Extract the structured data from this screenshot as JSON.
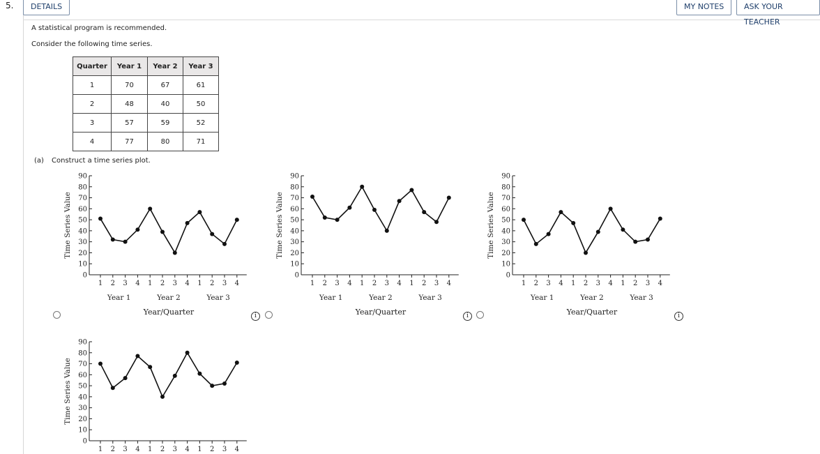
{
  "question": {
    "number": "5.",
    "details_label": "DETAILS",
    "my_notes_label": "MY NOTES",
    "ask_teacher_label": "ASK YOUR TEACHER",
    "note": "A statistical program is recommended.",
    "prompt": "Consider the following time series."
  },
  "table": {
    "headers": [
      "Quarter",
      "Year 1",
      "Year 2",
      "Year 3"
    ],
    "rows": [
      [
        "1",
        "70",
        "67",
        "61"
      ],
      [
        "2",
        "48",
        "40",
        "50"
      ],
      [
        "3",
        "57",
        "59",
        "52"
      ],
      [
        "4",
        "77",
        "80",
        "71"
      ]
    ]
  },
  "part_a": {
    "label": "(a)",
    "text": "Construct a time series plot."
  },
  "options": [
    {
      "info_icon": "i"
    },
    {
      "info_icon": "i"
    },
    {
      "info_icon": "i"
    },
    {
      "info_icon": ""
    }
  ],
  "chart_data": [
    {
      "type": "line",
      "ylabel": "Time Series Value",
      "xlabel": "Year/Quarter",
      "ylim": [
        0,
        90
      ],
      "yticks": [
        0,
        10,
        20,
        30,
        40,
        50,
        60,
        70,
        80,
        90
      ],
      "quarter_labels": [
        "1",
        "2",
        "3",
        "4",
        "1",
        "2",
        "3",
        "4",
        "1",
        "2",
        "3",
        "4"
      ],
      "year_labels": [
        "Year 1",
        "Year 2",
        "Year 3"
      ],
      "values": [
        51,
        32,
        30,
        41,
        60,
        39,
        20,
        47,
        57,
        37,
        28,
        50
      ]
    },
    {
      "type": "line",
      "ylabel": "Time Series Value",
      "xlabel": "Year/Quarter",
      "ylim": [
        0,
        90
      ],
      "yticks": [
        0,
        10,
        20,
        30,
        40,
        50,
        60,
        70,
        80,
        90
      ],
      "quarter_labels": [
        "1",
        "2",
        "3",
        "4",
        "1",
        "2",
        "3",
        "4",
        "1",
        "2",
        "3",
        "4"
      ],
      "year_labels": [
        "Year 1",
        "Year 2",
        "Year 3"
      ],
      "values": [
        71,
        52,
        50,
        61,
        80,
        59,
        40,
        67,
        77,
        57,
        48,
        70
      ]
    },
    {
      "type": "line",
      "ylabel": "Time Series Value",
      "xlabel": "Year/Quarter",
      "ylim": [
        0,
        90
      ],
      "yticks": [
        0,
        10,
        20,
        30,
        40,
        50,
        60,
        70,
        80,
        90
      ],
      "quarter_labels": [
        "1",
        "2",
        "3",
        "4",
        "1",
        "2",
        "3",
        "4",
        "1",
        "2",
        "3",
        "4"
      ],
      "year_labels": [
        "Year 1",
        "Year 2",
        "Year 3"
      ],
      "values": [
        50,
        28,
        37,
        57,
        47,
        20,
        39,
        60,
        41,
        30,
        32,
        51
      ]
    },
    {
      "type": "line",
      "ylabel": "Time Series Value",
      "xlabel": "",
      "ylim": [
        0,
        90
      ],
      "yticks": [
        0,
        10,
        20,
        30,
        40,
        50,
        60,
        70,
        80,
        90
      ],
      "quarter_labels": [
        "1",
        "2",
        "3",
        "4",
        "1",
        "2",
        "3",
        "4",
        "1",
        "2",
        "3",
        "4"
      ],
      "year_labels": [],
      "values": [
        70,
        48,
        57,
        77,
        67,
        40,
        59,
        80,
        61,
        50,
        52,
        71
      ]
    }
  ]
}
